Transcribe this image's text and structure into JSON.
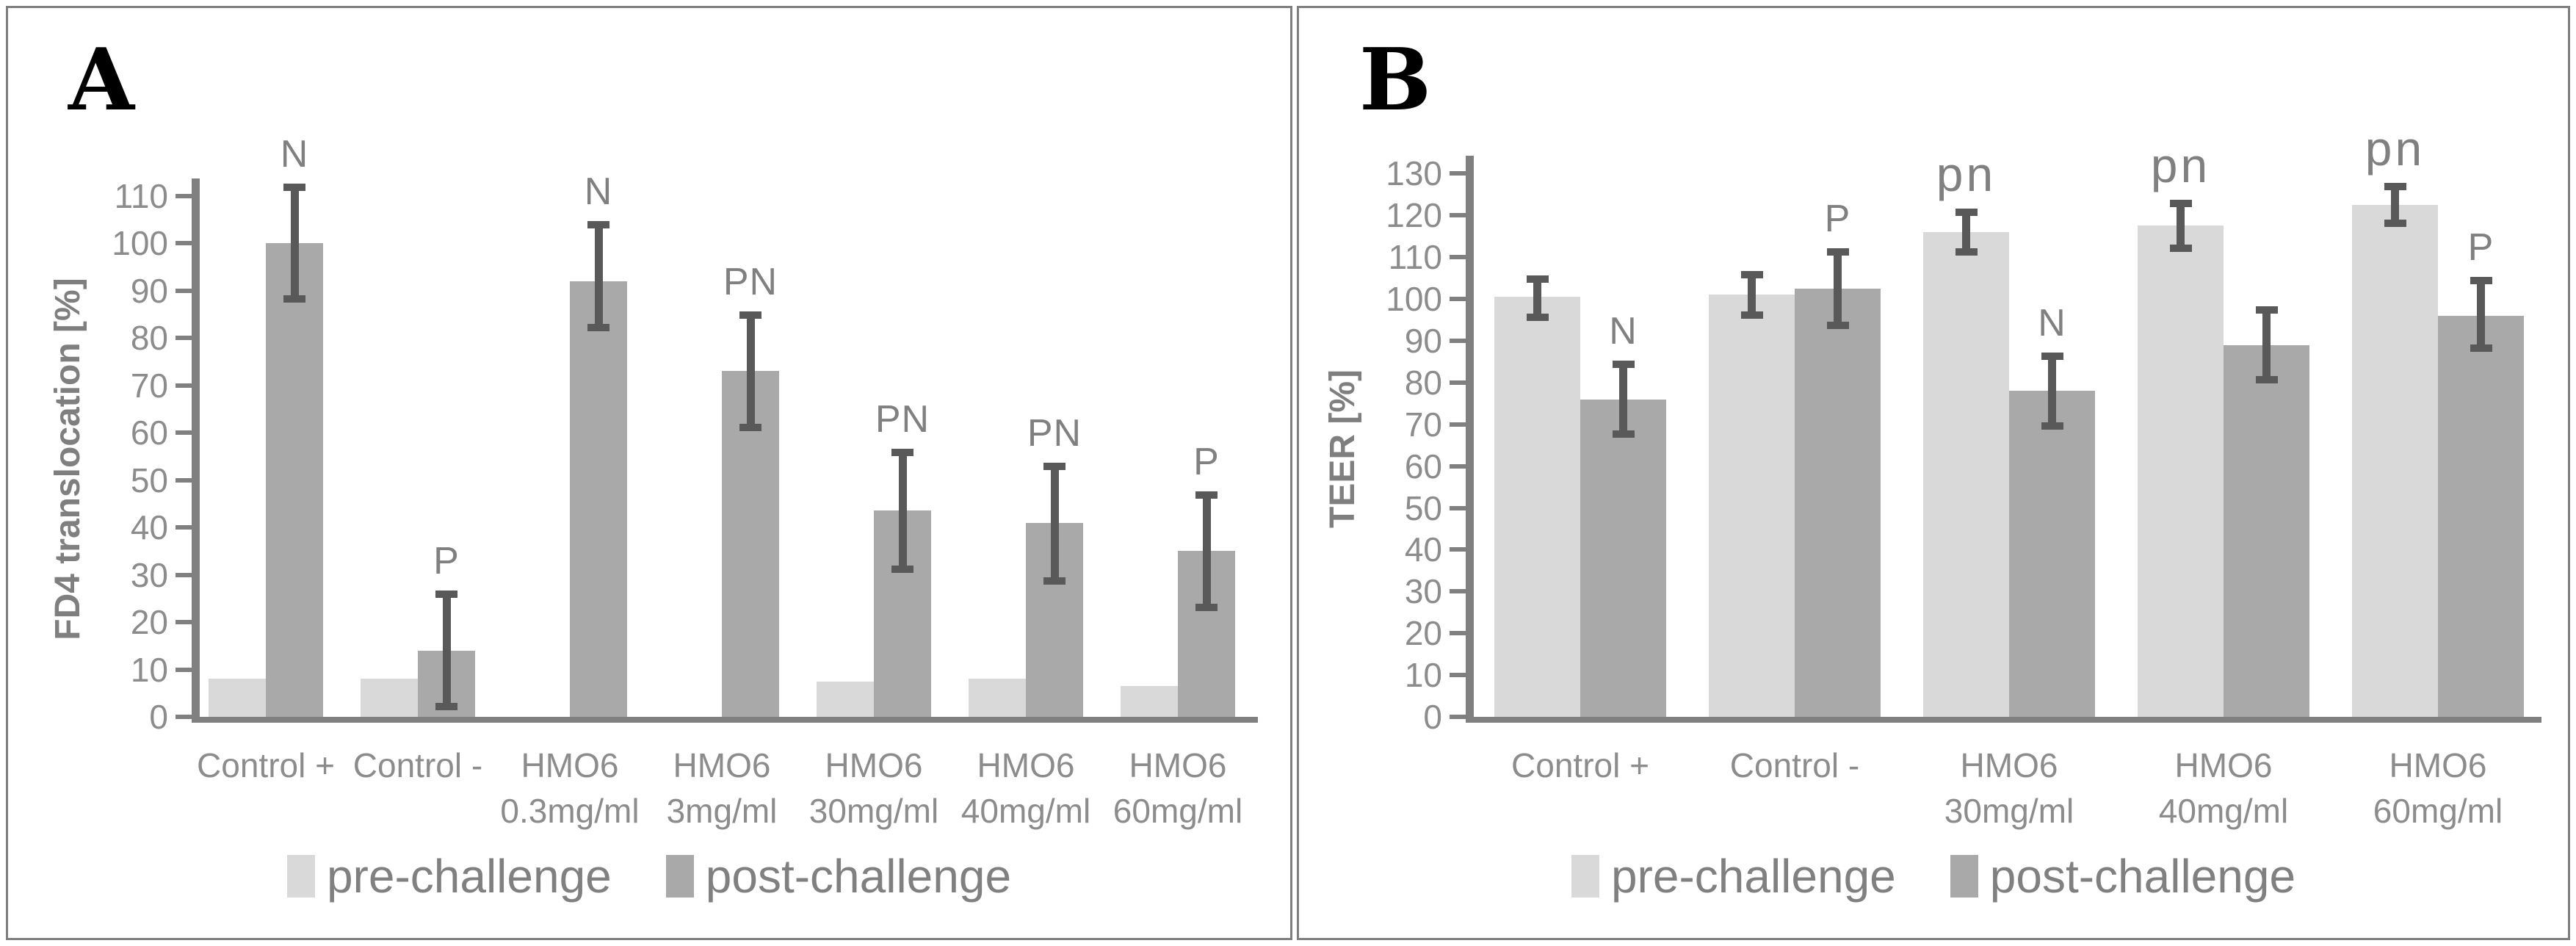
{
  "colors": {
    "pre": "#d9d9d9",
    "post": "#a9a9a9",
    "error_bar": "#595959",
    "axis": "#808080",
    "text": "#8c8c8c",
    "panel_border": "#7f7f7f",
    "panel_letter": "#000000"
  },
  "legend": {
    "pre_label": "pre-challenge",
    "post_label": "post-challenge"
  },
  "chart_data": [
    {
      "type": "bar",
      "panel_label": "A",
      "ylabel": "FD4 translocation [%]",
      "ylim": [
        0,
        110
      ],
      "ytick_step": 10,
      "grid": false,
      "legend_position": "bottom",
      "categories": [
        "Control +",
        "Control -",
        "HMO6\n0.3mg/ml",
        "HMO6\n3mg/ml",
        "HMO6\n30mg/ml",
        "HMO6\n40mg/ml",
        "HMO6\n60mg/ml"
      ],
      "series": [
        {
          "name": "pre-challenge",
          "values": [
            8,
            8,
            null,
            null,
            7.5,
            8,
            6.5
          ],
          "error_low": [
            null,
            null,
            null,
            null,
            null,
            null,
            null
          ],
          "error_high": [
            null,
            null,
            null,
            null,
            null,
            null,
            null
          ]
        },
        {
          "name": "post-challenge",
          "values": [
            100,
            14,
            92,
            73,
            43.5,
            41,
            35
          ],
          "error_low": [
            88,
            2,
            82,
            61,
            31,
            28.5,
            23
          ],
          "error_high": [
            112,
            26,
            104,
            85,
            56,
            53,
            47
          ]
        }
      ],
      "annotations": {
        "pre": [
          null,
          null,
          null,
          null,
          null,
          null,
          null
        ],
        "post": [
          "N",
          "P",
          "N",
          "PN",
          "PN",
          "PN",
          "P"
        ]
      }
    },
    {
      "type": "bar",
      "panel_label": "B",
      "ylabel": "TEER [%]",
      "ylim": [
        0,
        130
      ],
      "ytick_step": 10,
      "grid": false,
      "legend_position": "bottom",
      "categories": [
        "Control +",
        "Control -",
        "HMO6\n30mg/ml",
        "HMO6\n40mg/ml",
        "HMO6\n60mg/ml"
      ],
      "series": [
        {
          "name": "pre-challenge",
          "values": [
            100.5,
            101,
            116,
            117.5,
            122.5
          ],
          "error_low": [
            95.5,
            96,
            111,
            112,
            118
          ],
          "error_high": [
            105,
            106,
            121,
            123,
            127
          ]
        },
        {
          "name": "post-challenge",
          "values": [
            76,
            102.5,
            78,
            89,
            96
          ],
          "error_low": [
            67.5,
            93.5,
            69.5,
            80.5,
            88
          ],
          "error_high": [
            84.5,
            111.5,
            86.5,
            97.5,
            104.5
          ]
        }
      ],
      "annotations": {
        "pre": [
          null,
          null,
          "pn",
          "pn",
          "pn"
        ],
        "post": [
          "N",
          "P",
          "N",
          null,
          "P"
        ]
      }
    }
  ]
}
